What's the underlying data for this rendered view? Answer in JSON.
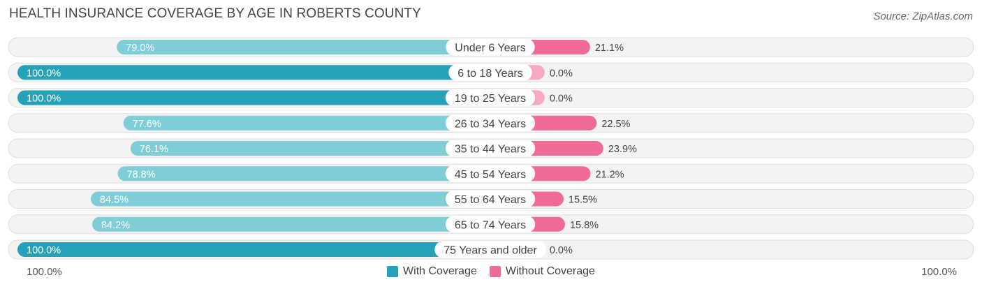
{
  "header": {
    "title": "HEALTH INSURANCE COVERAGE BY AGE IN ROBERTS COUNTY",
    "source": "Source: ZipAtlas.com"
  },
  "axis": {
    "left_label": "100.0%",
    "right_label": "100.0%"
  },
  "legend": {
    "with_label": "With Coverage",
    "without_label": "Without Coverage"
  },
  "colors": {
    "with_strong": "#26a2b8",
    "with_light": "#7ecdd7",
    "without_strong": "#f06b95",
    "without_light": "#f6a9c1",
    "track": "#eeeeee",
    "label_bg": "#ffffff"
  },
  "chart_data": {
    "type": "bar",
    "orientation": "horizontal-diverging",
    "title": "HEALTH INSURANCE COVERAGE BY AGE IN ROBERTS COUNTY",
    "categories": [
      "Under 6 Years",
      "6 to 18 Years",
      "19 to 25 Years",
      "26 to 34 Years",
      "35 to 44 Years",
      "45 to 54 Years",
      "55 to 64 Years",
      "65 to 74 Years",
      "75 Years and older"
    ],
    "series": [
      {
        "name": "With Coverage",
        "values": [
          79.0,
          100.0,
          100.0,
          77.6,
          76.1,
          78.8,
          84.5,
          84.2,
          100.0
        ],
        "labels": [
          "79.0%",
          "100.0%",
          "100.0%",
          "77.6%",
          "76.1%",
          "78.8%",
          "84.5%",
          "84.2%",
          "100.0%"
        ]
      },
      {
        "name": "Without Coverage",
        "values": [
          21.1,
          0.0,
          0.0,
          22.5,
          23.9,
          21.2,
          15.5,
          15.8,
          0.0
        ],
        "labels": [
          "21.1%",
          "0.0%",
          "0.0%",
          "22.5%",
          "23.9%",
          "21.2%",
          "15.5%",
          "15.8%",
          "0.0%"
        ]
      }
    ],
    "xlim": [
      0,
      100
    ],
    "xlabel_left": "100.0%",
    "xlabel_right": "100.0%",
    "legend_position": "bottom-center"
  }
}
